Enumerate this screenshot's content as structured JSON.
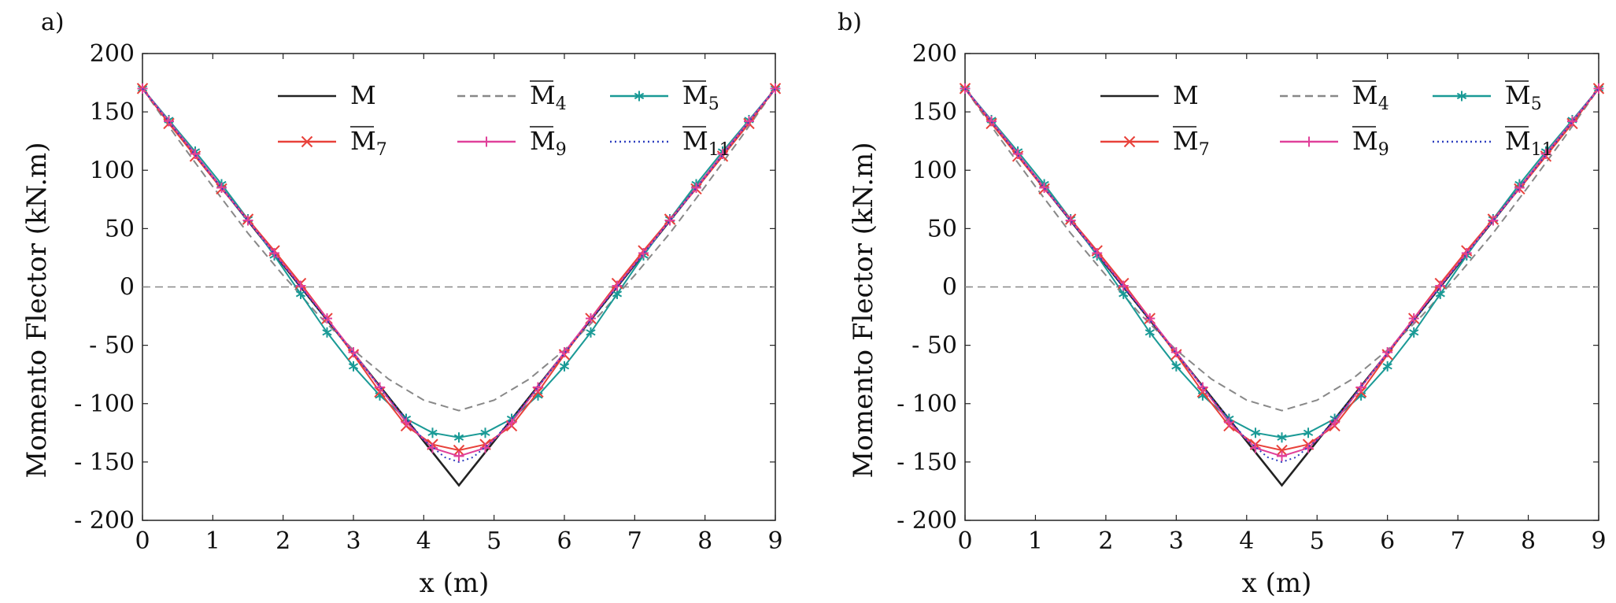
{
  "chart_data": [
    {
      "panel_label": "a)",
      "type": "line",
      "xlabel": "x (m)",
      "ylabel": "Momento Flector (kN.m)",
      "xlim": [
        0,
        9
      ],
      "ylim": [
        -200,
        200
      ],
      "x_ticks": [
        "0",
        "1",
        "2",
        "3",
        "4",
        "5",
        "6",
        "7",
        "8",
        "9"
      ],
      "y_ticks": [
        "200",
        "150",
        "100",
        "50",
        "0",
        "- 50",
        "- 100",
        "- 150",
        "- 200"
      ],
      "legend_position": "top-center",
      "reference_line_y": 0,
      "series": [
        {
          "name": "M",
          "sub": "",
          "color": "#222222",
          "style": "solid",
          "marker": "none",
          "x": [
            0,
            4.5,
            9
          ],
          "y": [
            170,
            -170,
            170
          ]
        },
        {
          "name": "M",
          "sub": "4",
          "overline": true,
          "color": "#888888",
          "style": "dashed",
          "marker": "none",
          "x": [
            0,
            0.5,
            1,
            1.5,
            2,
            2.5,
            3,
            3.5,
            4,
            4.5,
            5,
            5.5,
            6,
            6.5,
            7,
            7.5,
            8,
            8.5,
            9
          ],
          "y": [
            170,
            127,
            86,
            46,
            10,
            -24,
            -54,
            -79,
            -97,
            -106,
            -97,
            -79,
            -54,
            -24,
            10,
            46,
            86,
            127,
            170
          ]
        },
        {
          "name": "M",
          "sub": "5",
          "overline": true,
          "color": "#1a9a96",
          "style": "solid",
          "marker": "asterisk",
          "x": [
            0,
            0.375,
            0.75,
            1.125,
            1.5,
            1.875,
            2.25,
            2.625,
            3,
            3.375,
            3.75,
            4.125,
            4.5,
            4.875,
            5.25,
            5.625,
            6,
            6.375,
            6.75,
            7.125,
            7.5,
            7.875,
            8.25,
            8.625,
            9
          ],
          "y": [
            170,
            143,
            116,
            88,
            58,
            27,
            -6,
            -39,
            -68,
            -93,
            -113,
            -125,
            -129,
            -125,
            -113,
            -93,
            -68,
            -39,
            -6,
            27,
            58,
            88,
            116,
            143,
            170
          ]
        },
        {
          "name": "M",
          "sub": "7",
          "overline": true,
          "color": "#e8413a",
          "style": "solid",
          "marker": "cross",
          "x": [
            0,
            0.375,
            0.75,
            1.125,
            1.5,
            1.875,
            2.25,
            2.625,
            3,
            3.375,
            3.75,
            4.125,
            4.5,
            4.875,
            5.25,
            5.625,
            6,
            6.375,
            6.75,
            7.125,
            7.5,
            7.875,
            8.25,
            8.625,
            9
          ],
          "y": [
            170,
            140,
            112,
            84,
            58,
            31,
            3,
            -27,
            -58,
            -90,
            -119,
            -135,
            -140,
            -135,
            -119,
            -90,
            -58,
            -27,
            3,
            31,
            58,
            84,
            112,
            140,
            170
          ]
        },
        {
          "name": "M",
          "sub": "9",
          "overline": true,
          "color": "#e0409a",
          "style": "solid",
          "marker": "plus",
          "x": [
            0,
            0.375,
            0.75,
            1.125,
            1.5,
            1.875,
            2.25,
            2.625,
            3,
            3.375,
            3.75,
            4.125,
            4.5,
            4.875,
            5.25,
            5.625,
            6,
            6.375,
            6.75,
            7.125,
            7.5,
            7.875,
            8.25,
            8.625,
            9
          ],
          "y": [
            170,
            142,
            114,
            85,
            57,
            29,
            1,
            -27,
            -56,
            -86,
            -116,
            -138,
            -145,
            -138,
            -116,
            -86,
            -56,
            -27,
            1,
            29,
            57,
            85,
            114,
            142,
            170
          ]
        },
        {
          "name": "M",
          "sub": "11",
          "overline": true,
          "color": "#2e3fbf",
          "style": "dotted",
          "marker": "none",
          "x": [
            0,
            0.5,
            1,
            1.5,
            2,
            2.5,
            3,
            3.5,
            4,
            4.3,
            4.5,
            4.7,
            5,
            5.5,
            6,
            6.5,
            7,
            7.5,
            8,
            8.5,
            9
          ],
          "y": [
            170,
            132,
            94,
            57,
            19,
            -19,
            -57,
            -95,
            -131,
            -146,
            -150,
            -146,
            -131,
            -95,
            -57,
            -19,
            19,
            57,
            94,
            132,
            170
          ]
        }
      ]
    },
    {
      "panel_label": "b)",
      "type": "line",
      "xlabel": "x (m)",
      "ylabel": "Momento Flector (kN.m)",
      "xlim": [
        0,
        9
      ],
      "ylim": [
        -200,
        200
      ],
      "x_ticks": [
        "0",
        "1",
        "2",
        "3",
        "4",
        "5",
        "6",
        "7",
        "8",
        "9"
      ],
      "y_ticks": [
        "200",
        "150",
        "100",
        "50",
        "0",
        "- 50",
        "- 100",
        "- 150",
        "- 200"
      ],
      "legend_position": "top-center",
      "reference_line_y": 0,
      "series": [
        {
          "name": "M",
          "sub": "",
          "color": "#222222",
          "style": "solid",
          "marker": "none",
          "x": [
            0,
            4.5,
            9
          ],
          "y": [
            170,
            -170,
            170
          ]
        },
        {
          "name": "M",
          "sub": "4",
          "overline": true,
          "color": "#888888",
          "style": "dashed",
          "marker": "none",
          "x": [
            0,
            0.5,
            1,
            1.5,
            2,
            2.5,
            3,
            3.5,
            4,
            4.5,
            5,
            5.5,
            6,
            6.5,
            7,
            7.5,
            8,
            8.5,
            9
          ],
          "y": [
            170,
            127,
            86,
            46,
            10,
            -24,
            -54,
            -79,
            -97,
            -106,
            -97,
            -79,
            -54,
            -24,
            10,
            46,
            86,
            127,
            170
          ]
        },
        {
          "name": "M",
          "sub": "5",
          "overline": true,
          "color": "#1a9a96",
          "style": "solid",
          "marker": "asterisk",
          "x": [
            0,
            0.375,
            0.75,
            1.125,
            1.5,
            1.875,
            2.25,
            2.625,
            3,
            3.375,
            3.75,
            4.125,
            4.5,
            4.875,
            5.25,
            5.625,
            6,
            6.375,
            6.75,
            7.125,
            7.5,
            7.875,
            8.25,
            8.625,
            9
          ],
          "y": [
            170,
            143,
            116,
            88,
            58,
            27,
            -6,
            -39,
            -68,
            -93,
            -113,
            -125,
            -129,
            -125,
            -113,
            -93,
            -68,
            -39,
            -6,
            27,
            58,
            88,
            116,
            143,
            170
          ]
        },
        {
          "name": "M",
          "sub": "7",
          "overline": true,
          "color": "#e8413a",
          "style": "solid",
          "marker": "cross",
          "x": [
            0,
            0.375,
            0.75,
            1.125,
            1.5,
            1.875,
            2.25,
            2.625,
            3,
            3.375,
            3.75,
            4.125,
            4.5,
            4.875,
            5.25,
            5.625,
            6,
            6.375,
            6.75,
            7.125,
            7.5,
            7.875,
            8.25,
            8.625,
            9
          ],
          "y": [
            170,
            140,
            112,
            84,
            58,
            31,
            3,
            -27,
            -58,
            -90,
            -119,
            -135,
            -140,
            -135,
            -119,
            -90,
            -58,
            -27,
            3,
            31,
            58,
            84,
            112,
            140,
            170
          ]
        },
        {
          "name": "M",
          "sub": "9",
          "overline": true,
          "color": "#e0409a",
          "style": "solid",
          "marker": "plus",
          "x": [
            0,
            0.375,
            0.75,
            1.125,
            1.5,
            1.875,
            2.25,
            2.625,
            3,
            3.375,
            3.75,
            4.125,
            4.5,
            4.875,
            5.25,
            5.625,
            6,
            6.375,
            6.75,
            7.125,
            7.5,
            7.875,
            8.25,
            8.625,
            9
          ],
          "y": [
            170,
            142,
            114,
            85,
            57,
            29,
            1,
            -27,
            -56,
            -86,
            -116,
            -138,
            -145,
            -138,
            -116,
            -86,
            -56,
            -27,
            1,
            29,
            57,
            85,
            114,
            142,
            170
          ]
        },
        {
          "name": "M",
          "sub": "11",
          "overline": true,
          "color": "#2e3fbf",
          "style": "dotted",
          "marker": "none",
          "x": [
            0,
            0.5,
            1,
            1.5,
            2,
            2.5,
            3,
            3.5,
            4,
            4.3,
            4.5,
            4.7,
            5,
            5.5,
            6,
            6.5,
            7,
            7.5,
            8,
            8.5,
            9
          ],
          "y": [
            170,
            132,
            94,
            57,
            19,
            -19,
            -57,
            -95,
            -131,
            -146,
            -150,
            -146,
            -131,
            -95,
            -57,
            -19,
            19,
            57,
            94,
            132,
            170
          ]
        }
      ]
    }
  ]
}
